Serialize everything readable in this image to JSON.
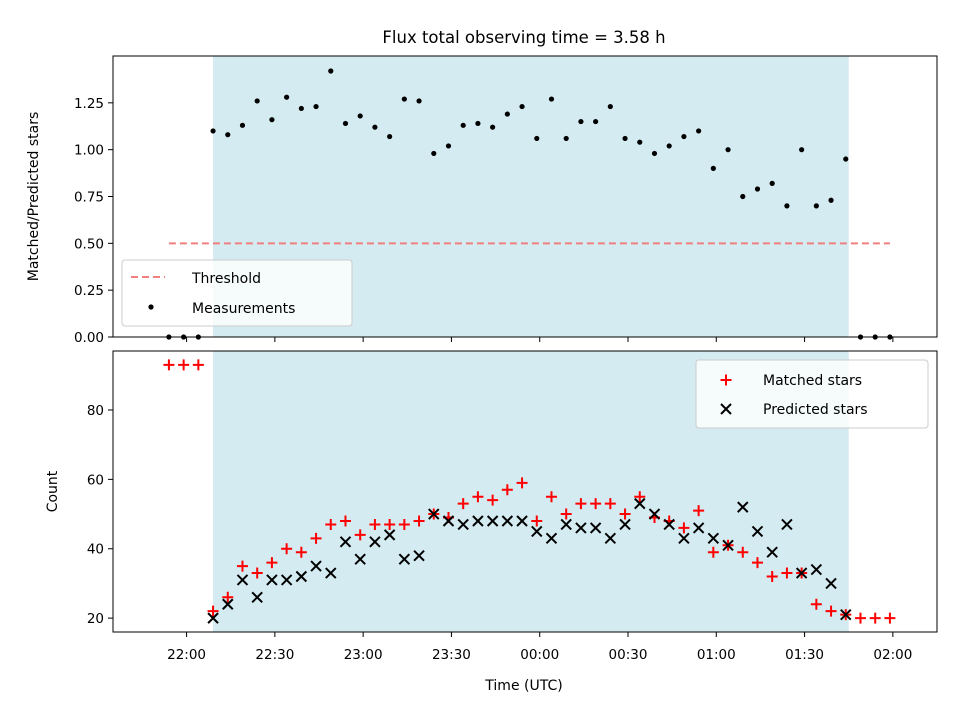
{
  "title": "Flux total observing time = 3.58 h",
  "xlabel": "Time (UTC)",
  "colors": {
    "shade": "#d3ebf1",
    "threshold": "#f08080",
    "matched": "#ff0000",
    "predicted": "#000000",
    "measurement": "#000000"
  },
  "chart_data": [
    {
      "type": "scatter",
      "panel": "top",
      "ylabel": "Matched/Predicted stars",
      "x_time_range": [
        "21:35",
        "02:15"
      ],
      "ylim": [
        0,
        1.5
      ],
      "yticks": [
        0,
        0.25,
        0.5,
        0.75,
        1.0,
        1.25
      ],
      "ytick_labels": [
        "0.00",
        "0.25",
        "0.50",
        "0.75",
        "1.00",
        "1.25"
      ],
      "shaded_span": [
        "22:09",
        "01:45"
      ],
      "threshold": {
        "name": "Threshold",
        "y": 0.5,
        "x_start": "21:54",
        "x_end": "01:59",
        "style": "dashed"
      },
      "legend": {
        "placement": "lower left",
        "entries": [
          "Threshold",
          "Measurements"
        ]
      },
      "series": [
        {
          "name": "Measurements",
          "marker": "dot",
          "points": [
            [
              "21:54",
              0.0
            ],
            [
              "21:59",
              0.0
            ],
            [
              "22:04",
              0.0
            ],
            [
              "22:09",
              1.1
            ],
            [
              "22:14",
              1.08
            ],
            [
              "22:19",
              1.13
            ],
            [
              "22:24",
              1.26
            ],
            [
              "22:29",
              1.16
            ],
            [
              "22:34",
              1.28
            ],
            [
              "22:39",
              1.22
            ],
            [
              "22:44",
              1.23
            ],
            [
              "22:49",
              1.42
            ],
            [
              "22:54",
              1.14
            ],
            [
              "22:59",
              1.18
            ],
            [
              "23:04",
              1.12
            ],
            [
              "23:09",
              1.07
            ],
            [
              "23:14",
              1.27
            ],
            [
              "23:19",
              1.26
            ],
            [
              "23:24",
              0.98
            ],
            [
              "23:29",
              1.02
            ],
            [
              "23:34",
              1.13
            ],
            [
              "23:39",
              1.14
            ],
            [
              "23:44",
              1.12
            ],
            [
              "23:49",
              1.19
            ],
            [
              "23:54",
              1.23
            ],
            [
              "23:59",
              1.06
            ],
            [
              "00:04",
              1.27
            ],
            [
              "00:09",
              1.06
            ],
            [
              "00:14",
              1.15
            ],
            [
              "00:19",
              1.15
            ],
            [
              "00:24",
              1.23
            ],
            [
              "00:29",
              1.06
            ],
            [
              "00:34",
              1.04
            ],
            [
              "00:39",
              0.98
            ],
            [
              "00:44",
              1.02
            ],
            [
              "00:49",
              1.07
            ],
            [
              "00:54",
              1.1
            ],
            [
              "00:59",
              0.9
            ],
            [
              "01:04",
              1.0
            ],
            [
              "01:09",
              0.75
            ],
            [
              "01:14",
              0.79
            ],
            [
              "01:19",
              0.82
            ],
            [
              "01:24",
              0.7
            ],
            [
              "01:29",
              1.0
            ],
            [
              "01:34",
              0.7
            ],
            [
              "01:39",
              0.73
            ],
            [
              "01:44",
              0.95
            ],
            [
              "01:49",
              0.0
            ],
            [
              "01:54",
              0.0
            ],
            [
              "01:59",
              0.0
            ]
          ]
        }
      ]
    },
    {
      "type": "scatter",
      "panel": "bottom",
      "ylabel": "Count",
      "x_time_range": [
        "21:35",
        "02:15"
      ],
      "ylim": [
        16,
        97
      ],
      "yticks": [
        20,
        40,
        60,
        80
      ],
      "ytick_labels": [
        "20",
        "40",
        "60",
        "80"
      ],
      "xticks": [
        "22:00",
        "22:30",
        "23:00",
        "23:30",
        "00:00",
        "00:30",
        "01:00",
        "01:30",
        "02:00"
      ],
      "shaded_span": [
        "22:09",
        "01:45"
      ],
      "legend": {
        "placement": "upper right",
        "entries": [
          "Matched stars",
          "Predicted stars"
        ]
      },
      "series": [
        {
          "name": "Matched stars",
          "marker": "plus",
          "points": [
            [
              "21:54",
              93
            ],
            [
              "21:59",
              93
            ],
            [
              "22:04",
              93
            ],
            [
              "22:09",
              22
            ],
            [
              "22:14",
              26
            ],
            [
              "22:19",
              35
            ],
            [
              "22:24",
              33
            ],
            [
              "22:29",
              36
            ],
            [
              "22:34",
              40
            ],
            [
              "22:39",
              39
            ],
            [
              "22:44",
              43
            ],
            [
              "22:49",
              47
            ],
            [
              "22:54",
              48
            ],
            [
              "22:59",
              44
            ],
            [
              "23:04",
              47
            ],
            [
              "23:09",
              47
            ],
            [
              "23:14",
              47
            ],
            [
              "23:19",
              48
            ],
            [
              "23:24",
              50
            ],
            [
              "23:29",
              49
            ],
            [
              "23:34",
              53
            ],
            [
              "23:39",
              55
            ],
            [
              "23:44",
              54
            ],
            [
              "23:49",
              57
            ],
            [
              "23:54",
              59
            ],
            [
              "23:59",
              48
            ],
            [
              "00:04",
              55
            ],
            [
              "00:09",
              50
            ],
            [
              "00:14",
              53
            ],
            [
              "00:19",
              53
            ],
            [
              "00:24",
              53
            ],
            [
              "00:29",
              50
            ],
            [
              "00:34",
              55
            ],
            [
              "00:39",
              49
            ],
            [
              "00:44",
              48
            ],
            [
              "00:49",
              46
            ],
            [
              "00:54",
              51
            ],
            [
              "00:59",
              39
            ],
            [
              "01:04",
              41
            ],
            [
              "01:09",
              39
            ],
            [
              "01:14",
              36
            ],
            [
              "01:19",
              32
            ],
            [
              "01:24",
              33
            ],
            [
              "01:29",
              33
            ],
            [
              "01:34",
              24
            ],
            [
              "01:39",
              22
            ],
            [
              "01:44",
              21
            ],
            [
              "01:49",
              20
            ],
            [
              "01:54",
              20
            ],
            [
              "01:59",
              20
            ]
          ]
        },
        {
          "name": "Predicted stars",
          "marker": "x",
          "points": [
            [
              "22:09",
              20
            ],
            [
              "22:14",
              24
            ],
            [
              "22:19",
              31
            ],
            [
              "22:24",
              26
            ],
            [
              "22:29",
              31
            ],
            [
              "22:34",
              31
            ],
            [
              "22:39",
              32
            ],
            [
              "22:44",
              35
            ],
            [
              "22:49",
              33
            ],
            [
              "22:54",
              42
            ],
            [
              "22:59",
              37
            ],
            [
              "23:04",
              42
            ],
            [
              "23:09",
              44
            ],
            [
              "23:14",
              37
            ],
            [
              "23:19",
              38
            ],
            [
              "23:24",
              50
            ],
            [
              "23:29",
              48
            ],
            [
              "23:34",
              47
            ],
            [
              "23:39",
              48
            ],
            [
              "23:44",
              48
            ],
            [
              "23:49",
              48
            ],
            [
              "23:54",
              48
            ],
            [
              "23:59",
              45
            ],
            [
              "00:04",
              43
            ],
            [
              "00:09",
              47
            ],
            [
              "00:14",
              46
            ],
            [
              "00:19",
              46
            ],
            [
              "00:24",
              43
            ],
            [
              "00:29",
              47
            ],
            [
              "00:34",
              53
            ],
            [
              "00:39",
              50
            ],
            [
              "00:44",
              47
            ],
            [
              "00:49",
              43
            ],
            [
              "00:54",
              46
            ],
            [
              "00:59",
              43
            ],
            [
              "01:04",
              41
            ],
            [
              "01:09",
              52
            ],
            [
              "01:14",
              45
            ],
            [
              "01:19",
              39
            ],
            [
              "01:24",
              47
            ],
            [
              "01:29",
              33
            ],
            [
              "01:34",
              34
            ],
            [
              "01:39",
              30
            ],
            [
              "01:44",
              21
            ]
          ]
        }
      ]
    }
  ]
}
